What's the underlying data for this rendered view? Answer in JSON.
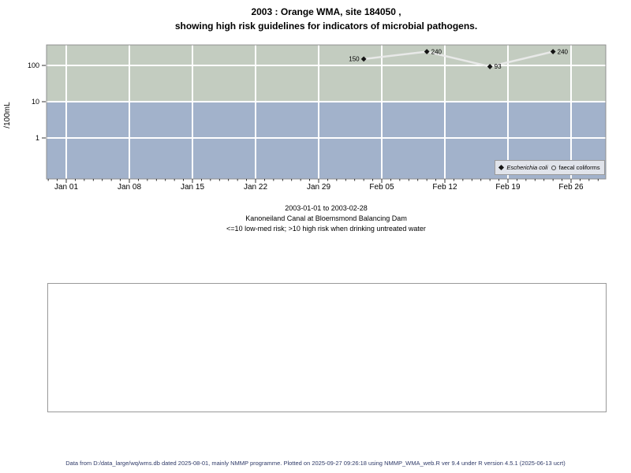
{
  "title": {
    "line1": "2003 : Orange WMA, site 184050 ,",
    "line2": "showing high risk guidelines for indicators of microbial pathogens."
  },
  "chart_data": {
    "type": "line",
    "y_scale": "log",
    "ylabel": "/100mL",
    "ytick_values": [
      100,
      10,
      1
    ],
    "ytick_labels": [
      "100",
      "10",
      "1"
    ],
    "xtick_labels": [
      "Jan 01",
      "Jan 08",
      "Jan 15",
      "Jan 22",
      "Jan 29",
      "Feb 05",
      "Feb 12",
      "Feb 19",
      "Feb 26"
    ],
    "xtick_days": [
      0,
      7,
      14,
      21,
      28,
      35,
      42,
      49,
      56
    ],
    "x_range": [
      "2003-01-01",
      "2003-02-28"
    ],
    "grid": true,
    "risk_threshold": 10,
    "high_risk_color": "#c3ccc0",
    "low_med_risk_color": "#a2b2cb",
    "line_color": "#ececec",
    "marker_color": "#141414",
    "series": [
      {
        "name": "Escherichia coli",
        "marker": "filled-diamond",
        "dates": [
          "2003-02-03",
          "2003-02-10",
          "2003-02-17",
          "2003-02-24"
        ],
        "values": [
          150,
          240,
          93,
          240
        ],
        "point_labels": [
          "150",
          "240",
          "93",
          "240"
        ],
        "label_side": [
          "left",
          "right",
          "right",
          "right"
        ]
      },
      {
        "name": "faecal coliforms",
        "marker": "open-circle",
        "dates": [],
        "values": [],
        "point_labels": [],
        "label_side": []
      }
    ]
  },
  "caption": {
    "line1": "2003-01-01 to 2003-02-28",
    "line2": "Kanoneiland Canal at Bloemsmond Balancing Dam",
    "line3": "<=10 low-med risk; >10 high risk when drinking untreated water"
  },
  "footer": {
    "text": "Data from D:/data_large/wq/wms.db dated 2025-08-01, mainly NMMP programme. Plotted on 2025-09-27 09:26:18 using NMMP_WMA_web.R ver 9.4 under R version 4.5.1 (2025-06-13 ucrt)"
  }
}
